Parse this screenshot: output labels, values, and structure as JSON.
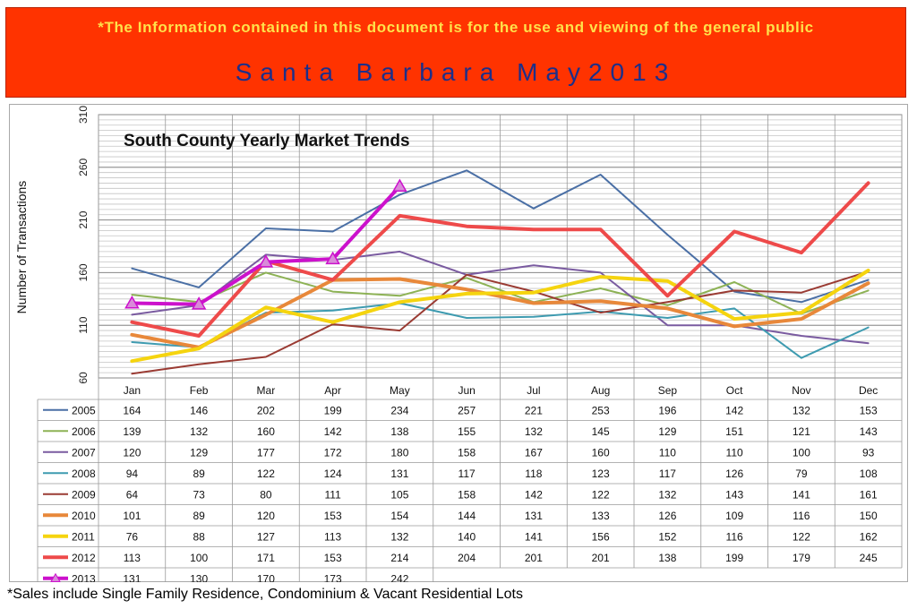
{
  "header": {
    "notice": "*The Information contained in this document is for the use and viewing of the general public",
    "title": "Santa Barbara May2013"
  },
  "footnote": "*Sales include Single Family Residence, Condominium & Vacant Residential Lots",
  "chart_data": {
    "type": "line",
    "title": "South County Yearly Market Trends",
    "xlabel": "",
    "ylabel": "Number of Transactions",
    "ylim": [
      60,
      310
    ],
    "yticks": [
      60,
      110,
      160,
      210,
      260,
      310
    ],
    "grid": true,
    "legend": "data-table",
    "categories": [
      "Jan",
      "Feb",
      "Mar",
      "Apr",
      "May",
      "Jun",
      "Jul",
      "Aug",
      "Sep",
      "Oct",
      "Nov",
      "Dec"
    ],
    "series": [
      {
        "name": "2005",
        "color": "#4a6fa5",
        "width": 2,
        "values": [
          164,
          146,
          202,
          199,
          234,
          257,
          221,
          253,
          196,
          142,
          132,
          153
        ]
      },
      {
        "name": "2006",
        "color": "#8db255",
        "width": 2,
        "values": [
          139,
          132,
          160,
          142,
          138,
          155,
          132,
          145,
          129,
          151,
          121,
          143
        ]
      },
      {
        "name": "2007",
        "color": "#7a5ba0",
        "width": 2,
        "values": [
          120,
          129,
          177,
          172,
          180,
          158,
          167,
          160,
          110,
          110,
          100,
          93
        ]
      },
      {
        "name": "2008",
        "color": "#3e9bb0",
        "width": 2,
        "values": [
          94,
          89,
          122,
          124,
          131,
          117,
          118,
          123,
          117,
          126,
          79,
          108
        ]
      },
      {
        "name": "2009",
        "color": "#9a3b33",
        "width": 2,
        "values": [
          64,
          73,
          80,
          111,
          105,
          158,
          142,
          122,
          132,
          143,
          141,
          161
        ]
      },
      {
        "name": "2010",
        "color": "#e8883a",
        "width": 4,
        "values": [
          101,
          89,
          120,
          153,
          154,
          144,
          131,
          133,
          126,
          109,
          116,
          150
        ]
      },
      {
        "name": "2011",
        "color": "#f5d40f",
        "width": 4,
        "values": [
          76,
          88,
          127,
          113,
          132,
          140,
          141,
          156,
          152,
          116,
          122,
          162
        ]
      },
      {
        "name": "2012",
        "color": "#ee4a4a",
        "width": 4,
        "values": [
          113,
          100,
          171,
          153,
          214,
          204,
          201,
          201,
          138,
          199,
          179,
          245
        ]
      },
      {
        "name": "2013",
        "color": "#cc11cc",
        "width": 4,
        "marker": "triangle",
        "values": [
          131,
          130,
          170,
          173,
          242,
          null,
          null,
          null,
          null,
          null,
          null,
          null
        ]
      }
    ]
  }
}
